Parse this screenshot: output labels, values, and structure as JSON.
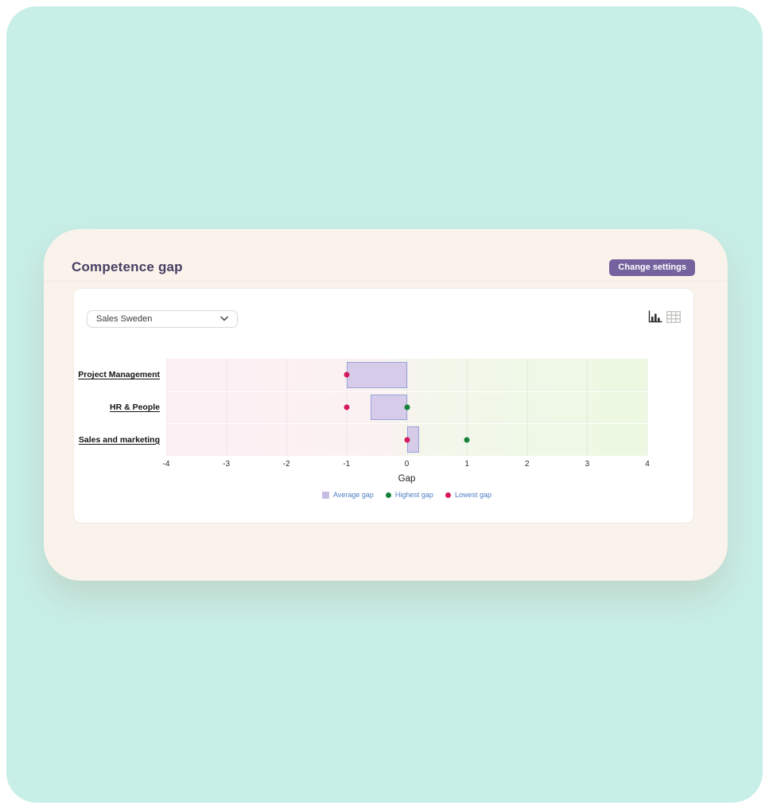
{
  "colors": {
    "surface_mint": "#c7eee7",
    "card_cream": "#faf3eb",
    "title_purple": "#4a3e63",
    "button_purple": "#75639f"
  },
  "header": {
    "title": "Competence gap",
    "settings_button_label": "Change settings"
  },
  "toolbar": {
    "dropdown_value": "Sales Sweden",
    "view_icons": [
      "bar-chart",
      "table"
    ],
    "active_view": "bar-chart"
  },
  "chart_data": {
    "type": "bar",
    "orientation": "horizontal",
    "title": "",
    "xlabel": "Gap",
    "xlim": [
      -4,
      4
    ],
    "xticks": [
      -4,
      -3,
      -2,
      -1,
      0,
      1,
      2,
      3,
      4
    ],
    "grid": true,
    "legend_position": "bottom",
    "categories": [
      "Project Management",
      "HR & People",
      "Sales and marketing"
    ],
    "rows": [
      {
        "category": "Project Management",
        "average_gap_range": [
          -1,
          0
        ],
        "highest_gap": null,
        "lowest_gap": -1
      },
      {
        "category": "HR & People",
        "average_gap_range": [
          -0.6,
          0
        ],
        "highest_gap": 0,
        "lowest_gap": -1
      },
      {
        "category": "Sales and marketing",
        "average_gap_range": [
          0,
          0.2
        ],
        "highest_gap": 1,
        "lowest_gap": 0
      }
    ],
    "series_styles": {
      "average_gap": {
        "fill": "#d6cbe9",
        "border": "#97a4d9"
      },
      "highest_gap": {
        "color": "#17803c"
      },
      "lowest_gap": {
        "color": "#d6195c"
      }
    },
    "plot_background_gradient": [
      "#fdf0f5",
      "#fbf1f1",
      "#f2f7eb",
      "#ecf8e1"
    ],
    "legend": [
      {
        "label": "Average gap",
        "swatch": "square",
        "color": "#c7bde3"
      },
      {
        "label": "Highest gap",
        "swatch": "dot",
        "color": "#17803c"
      },
      {
        "label": "Lowest gap",
        "swatch": "dot",
        "color": "#d6195c"
      }
    ],
    "legend_text_color": "#4d7fc4"
  }
}
